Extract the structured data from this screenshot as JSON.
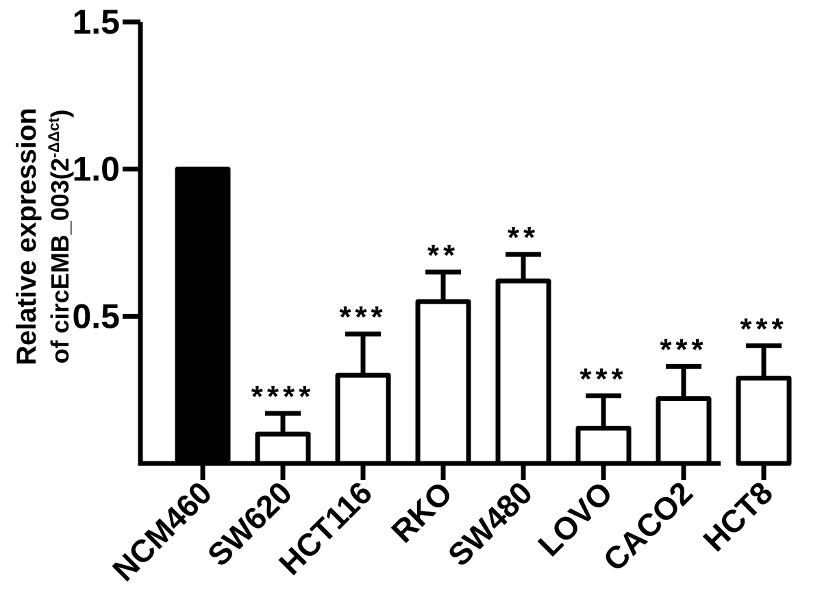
{
  "chart_data": {
    "type": "bar",
    "ylabel_line1": "Relative expression",
    "ylabel_line2": "of circEMB_003(2",
    "ylabel_superscript": "-ΔΔct",
    "ylabel_close": ")",
    "ylim": [
      0,
      1.5
    ],
    "ytick_values": [
      0.5,
      1.0,
      1.5
    ],
    "ytick_labels": [
      "0.5",
      "1.0",
      "1.5"
    ],
    "grid": false,
    "legend": "none",
    "categories": [
      "NCM460",
      "SW620",
      "HCT116",
      "RKO",
      "SW480",
      "LOVO",
      "CACO2",
      "HCT8"
    ],
    "values": [
      1.0,
      0.1,
      0.3,
      0.55,
      0.62,
      0.12,
      0.22,
      0.29
    ],
    "errors": [
      0.0,
      0.07,
      0.14,
      0.1,
      0.09,
      0.11,
      0.11,
      0.11
    ],
    "significance": [
      "",
      "****",
      "***",
      "**",
      "**",
      "***",
      "***",
      "***"
    ],
    "bar_fills": [
      "#000000",
      "#ffffff",
      "#ffffff",
      "#ffffff",
      "#ffffff",
      "#ffffff",
      "#ffffff",
      "#ffffff"
    ],
    "bar_stroke": "#000000",
    "axis_color": "#000000"
  }
}
